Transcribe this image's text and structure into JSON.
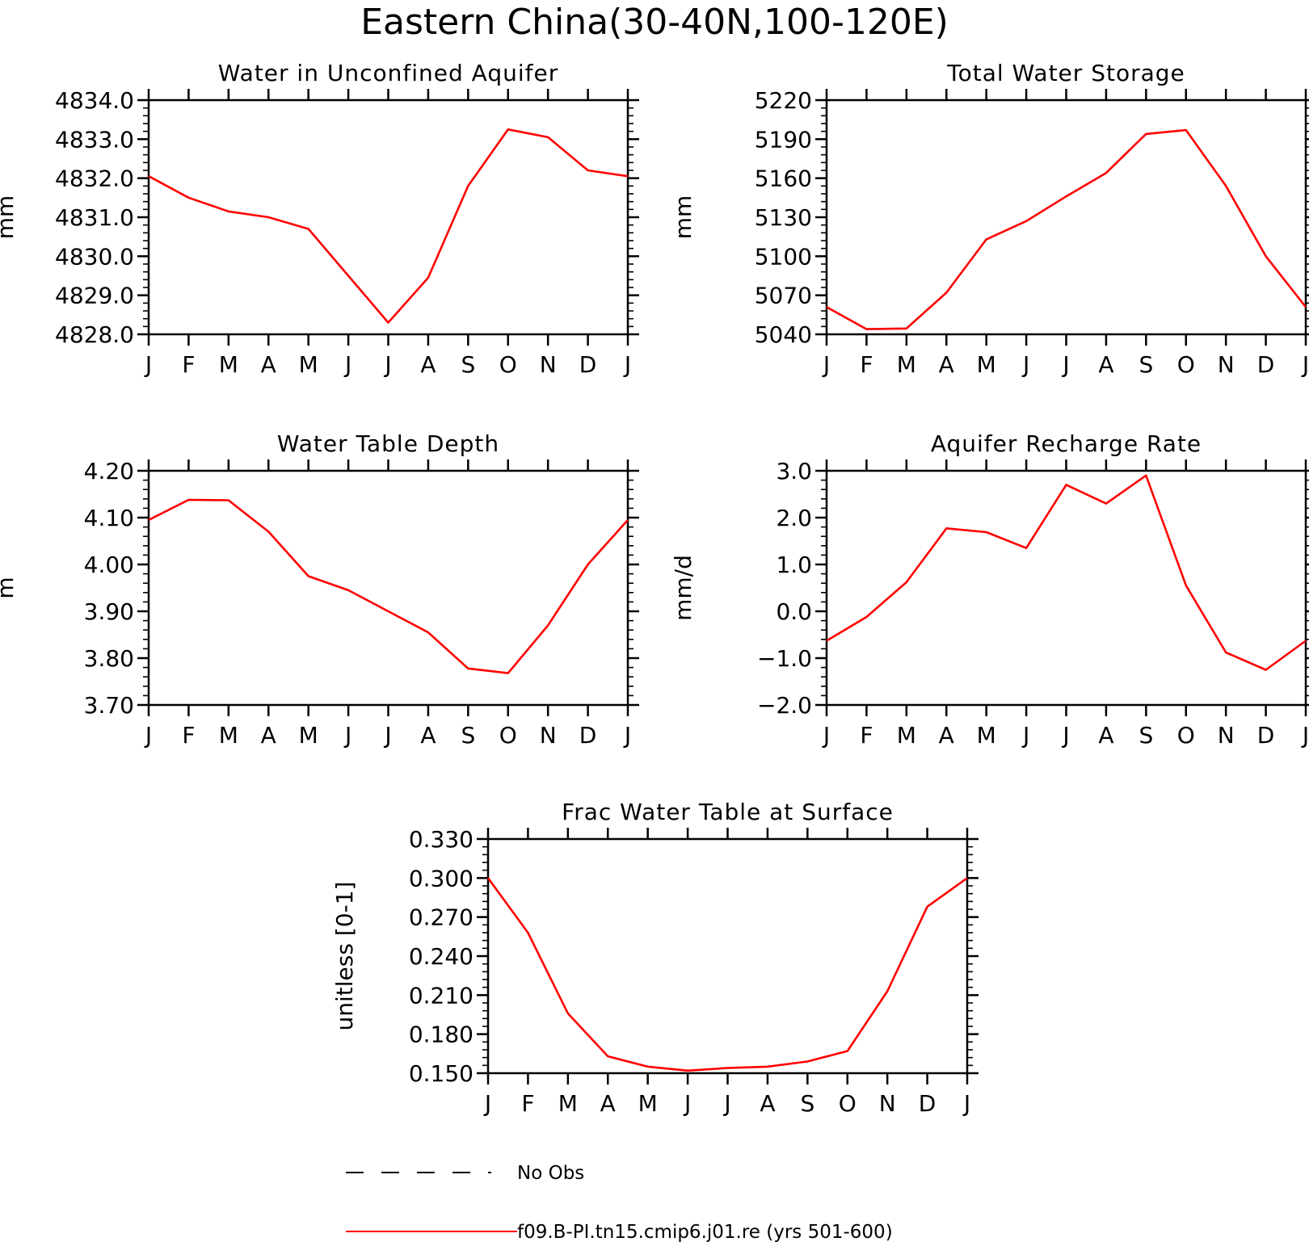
{
  "figure": {
    "title": "Eastern China(30-40N,100-120E)"
  },
  "colors": {
    "model": "#ff0000",
    "obs": "#000000"
  },
  "legend": {
    "obs_label": "No Obs",
    "model_label": "f09.B-PI.tn15.cmip6.j01.re (yrs 501-600)"
  },
  "chart_data": [
    {
      "type": "line",
      "title": "Water in Unconfined Aquifer",
      "ylabel": "mm",
      "xlabel": "",
      "categories": [
        "J",
        "F",
        "M",
        "A",
        "M",
        "J",
        "J",
        "A",
        "S",
        "O",
        "N",
        "D",
        "J"
      ],
      "ylim": [
        4828.0,
        4834.0
      ],
      "yticks": [
        "4828.0",
        "4829.0",
        "4830.0",
        "4831.0",
        "4832.0",
        "4833.0",
        "4834.0"
      ],
      "series": [
        {
          "values": [
            4832.05,
            4831.5,
            4831.15,
            4831.0,
            4830.7,
            4829.5,
            4828.3,
            4829.45,
            4831.8,
            4833.25,
            4833.05,
            4832.2,
            4832.05
          ]
        }
      ]
    },
    {
      "type": "line",
      "title": "Total Water Storage",
      "ylabel": "mm",
      "xlabel": "",
      "categories": [
        "J",
        "F",
        "M",
        "A",
        "M",
        "J",
        "J",
        "A",
        "S",
        "O",
        "N",
        "D",
        "J"
      ],
      "ylim": [
        5040,
        5220
      ],
      "yticks": [
        "5040",
        "5070",
        "5100",
        "5130",
        "5160",
        "5190",
        "5220"
      ],
      "series": [
        {
          "values": [
            5061,
            5044,
            5044.5,
            5072,
            5113,
            5127,
            5146,
            5164,
            5194,
            5197,
            5154,
            5100,
            5061
          ]
        }
      ]
    },
    {
      "type": "line",
      "title": "Water Table Depth",
      "ylabel": "m",
      "xlabel": "",
      "categories": [
        "J",
        "F",
        "M",
        "A",
        "M",
        "J",
        "J",
        "A",
        "S",
        "O",
        "N",
        "D",
        "J"
      ],
      "ylim": [
        3.7,
        4.2
      ],
      "yticks": [
        "3.70",
        "3.80",
        "3.90",
        "4.00",
        "4.10",
        "4.20"
      ],
      "series": [
        {
          "values": [
            4.095,
            4.138,
            4.137,
            4.07,
            3.975,
            3.945,
            3.9,
            3.855,
            3.778,
            3.768,
            3.87,
            4.0,
            4.095
          ]
        }
      ]
    },
    {
      "type": "line",
      "title": "Aquifer Recharge Rate",
      "ylabel": "mm/d",
      "xlabel": "",
      "categories": [
        "J",
        "F",
        "M",
        "A",
        "M",
        "J",
        "J",
        "A",
        "S",
        "O",
        "N",
        "D",
        "J"
      ],
      "ylim": [
        -2.0,
        3.0
      ],
      "yticks": [
        "−2.0",
        "−1.0",
        "0.0",
        "1.0",
        "2.0",
        "3.0"
      ],
      "series": [
        {
          "values": [
            -0.63,
            -0.12,
            0.62,
            1.77,
            1.69,
            1.35,
            2.7,
            2.3,
            2.9,
            0.55,
            -0.88,
            -1.25,
            -0.63
          ]
        }
      ]
    },
    {
      "type": "line",
      "title": "Frac Water Table at Surface",
      "ylabel": "unitless [0-1]",
      "xlabel": "",
      "categories": [
        "J",
        "F",
        "M",
        "A",
        "M",
        "J",
        "J",
        "A",
        "S",
        "O",
        "N",
        "D",
        "J"
      ],
      "ylim": [
        0.15,
        0.33
      ],
      "yticks": [
        "0.150",
        "0.180",
        "0.210",
        "0.240",
        "0.270",
        "0.300",
        "0.330"
      ],
      "series": [
        {
          "values": [
            0.3,
            0.258,
            0.196,
            0.163,
            0.155,
            0.152,
            0.154,
            0.155,
            0.159,
            0.167,
            0.213,
            0.278,
            0.3
          ]
        }
      ]
    }
  ]
}
